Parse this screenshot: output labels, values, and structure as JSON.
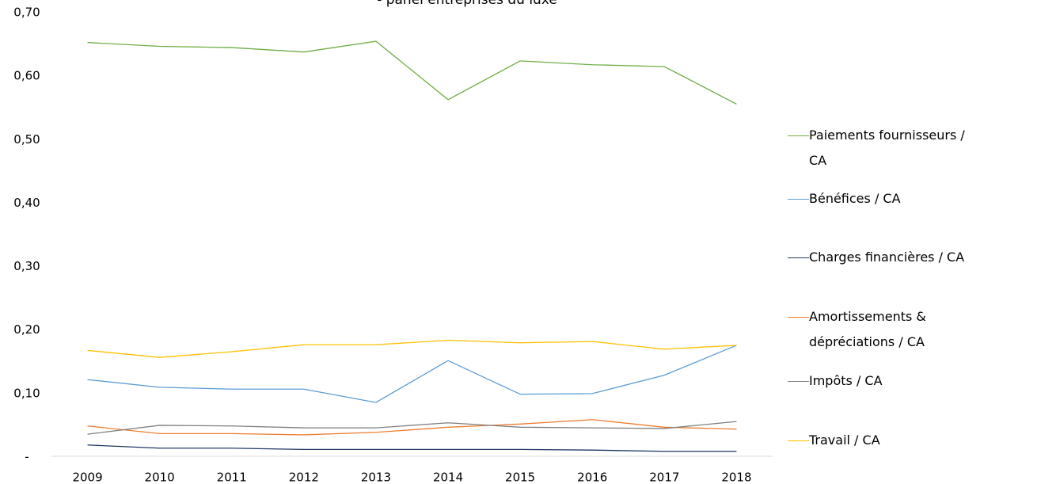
{
  "chart_data": {
    "type": "line",
    "title": "- panel entreprises du luxe",
    "categories": [
      "2009",
      "2010",
      "2011",
      "2012",
      "2013",
      "2014",
      "2015",
      "2016",
      "2017",
      "2018"
    ],
    "series": [
      {
        "name": "Paiements fournisseurs / CA",
        "color": "#70ad47",
        "values": [
          0.653,
          0.647,
          0.645,
          0.638,
          0.655,
          0.563,
          0.624,
          0.618,
          0.615,
          0.556
        ]
      },
      {
        "name": "Bénéfices / CA",
        "color": "#5b9bd5",
        "values": [
          0.122,
          0.11,
          0.107,
          0.107,
          0.086,
          0.152,
          0.099,
          0.1,
          0.129,
          0.176
        ]
      },
      {
        "name": "Charges financières / CA",
        "color": "#203864",
        "values": [
          0.019,
          0.014,
          0.014,
          0.012,
          0.012,
          0.012,
          0.012,
          0.011,
          0.009,
          0.009
        ]
      },
      {
        "name": "Amortissements & dépréciations / CA",
        "color": "#ed7d31",
        "values": [
          0.049,
          0.037,
          0.037,
          0.035,
          0.039,
          0.047,
          0.052,
          0.059,
          0.047,
          0.044
        ]
      },
      {
        "name": "Impôts / CA",
        "color": "#7f7f7f",
        "values": [
          0.036,
          0.05,
          0.049,
          0.046,
          0.046,
          0.054,
          0.047,
          0.046,
          0.045,
          0.056
        ]
      },
      {
        "name": "Travail / CA",
        "color": "#ffc000",
        "values": [
          0.168,
          0.157,
          0.166,
          0.177,
          0.177,
          0.184,
          0.18,
          0.182,
          0.17,
          0.176
        ]
      }
    ],
    "ylim": [
      0,
      0.7
    ],
    "yticks": [
      {
        "value": 0,
        "label": "-"
      },
      {
        "value": 0.1,
        "label": "0,10"
      },
      {
        "value": 0.2,
        "label": "0,20"
      },
      {
        "value": 0.3,
        "label": "0,30"
      },
      {
        "value": 0.4,
        "label": "0,40"
      },
      {
        "value": 0.5,
        "label": "0,50"
      },
      {
        "value": 0.6,
        "label": "0,60"
      },
      {
        "value": 0.7,
        "label": "0,70"
      }
    ],
    "grid": false,
    "legend": "right"
  }
}
